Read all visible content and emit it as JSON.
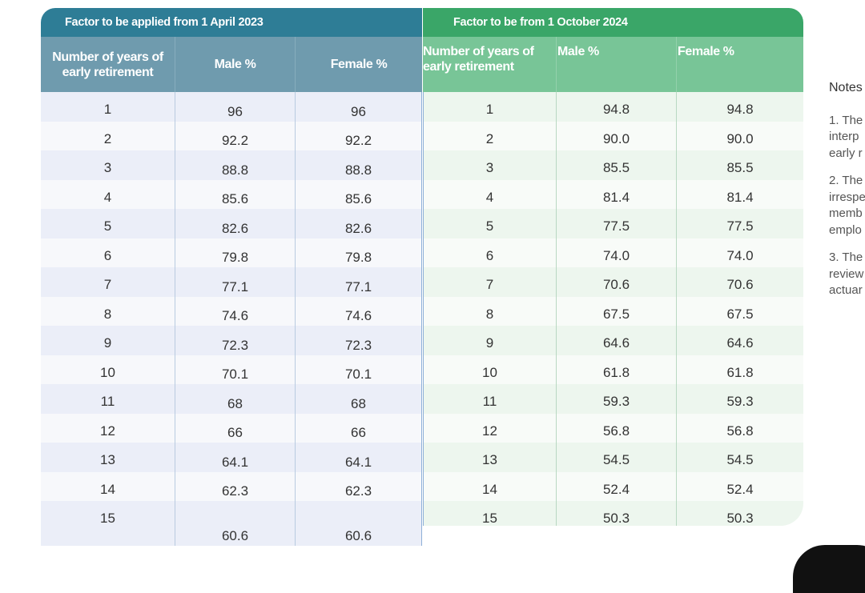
{
  "table_2023": {
    "title": "Factor to be applied from 1 April 2023",
    "headers": [
      "Number of years of early retirement",
      "Male %",
      "Female %"
    ],
    "rows": [
      [
        "1",
        "96",
        "96"
      ],
      [
        "2",
        "92.2",
        "92.2"
      ],
      [
        "3",
        "88.8",
        "88.8"
      ],
      [
        "4",
        "85.6",
        "85.6"
      ],
      [
        "5",
        "82.6",
        "82.6"
      ],
      [
        "6",
        "79.8",
        "79.8"
      ],
      [
        "7",
        "77.1",
        "77.1"
      ],
      [
        "8",
        "74.6",
        "74.6"
      ],
      [
        "9",
        "72.3",
        "72.3"
      ],
      [
        "10",
        "70.1",
        "70.1"
      ],
      [
        "11",
        "68",
        "68"
      ],
      [
        "12",
        "66",
        "66"
      ],
      [
        "13",
        "64.1",
        "64.1"
      ],
      [
        "14",
        "62.3",
        "62.3"
      ],
      [
        "15",
        "60.6",
        "60.6"
      ]
    ]
  },
  "table_2024": {
    "title": "Factor to be from 1 October 2024",
    "headers": [
      "Number of years of early retirement",
      "Male %",
      "Female %"
    ],
    "rows": [
      [
        "1",
        "94.8",
        "94.8"
      ],
      [
        "2",
        "90.0",
        "90.0"
      ],
      [
        "3",
        "85.5",
        "85.5"
      ],
      [
        "4",
        "81.4",
        "81.4"
      ],
      [
        "5",
        "77.5",
        "77.5"
      ],
      [
        "6",
        "74.0",
        "74.0"
      ],
      [
        "7",
        "70.6",
        "70.6"
      ],
      [
        "8",
        "67.5",
        "67.5"
      ],
      [
        "9",
        "64.6",
        "64.6"
      ],
      [
        "10",
        "61.8",
        "61.8"
      ],
      [
        "11",
        "59.3",
        "59.3"
      ],
      [
        "12",
        "56.8",
        "56.8"
      ],
      [
        "13",
        "54.5",
        "54.5"
      ],
      [
        "14",
        "52.4",
        "52.4"
      ],
      [
        "15",
        "50.3",
        "50.3"
      ]
    ]
  },
  "notes": {
    "heading": "Notes",
    "items": [
      [
        "1. The",
        "interp",
        "early r"
      ],
      [
        "2. The",
        "irrespe",
        "memb",
        "emplo"
      ],
      [
        "3. The",
        "review",
        "actuar"
      ]
    ]
  },
  "colors": {
    "blue_title": "#2e7d96",
    "blue_header": "#6f9bae",
    "green_title": "#3aa668",
    "green_header": "#78c597"
  }
}
